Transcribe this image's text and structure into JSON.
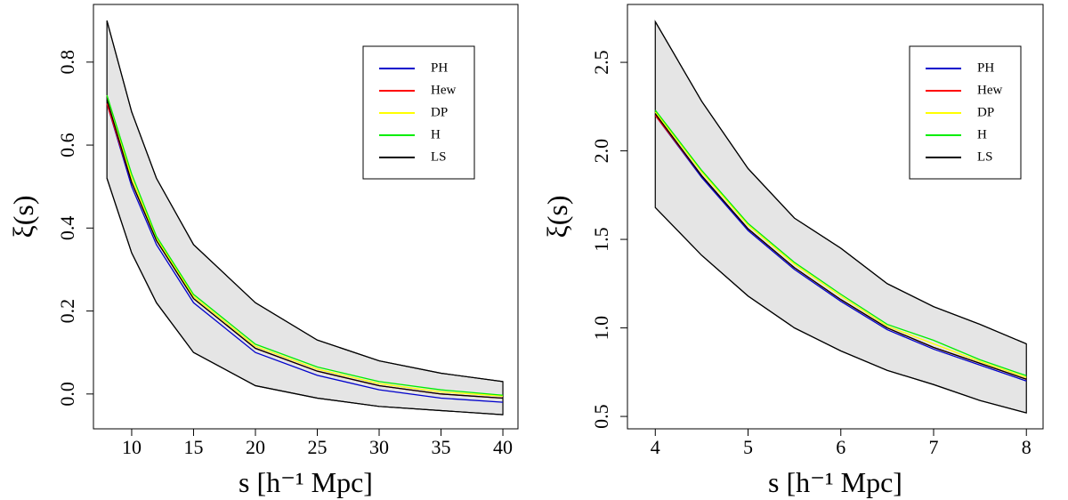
{
  "chart_data": [
    {
      "type": "line",
      "xlabel": "s [h⁻¹ Mpc]",
      "ylabel": "ξ(s)",
      "x": [
        8,
        10,
        12,
        15,
        20,
        25,
        30,
        35,
        40
      ],
      "xlim": [
        6.91,
        41.22
      ],
      "ylim": [
        -0.084,
        0.939
      ],
      "xticks": [
        10,
        15,
        20,
        25,
        30,
        35,
        40
      ],
      "yticks": [
        {
          "value": 0,
          "label": "0.0"
        },
        0.2,
        0.4,
        0.6,
        0.8
      ],
      "band": {
        "color": "#e5e5e5",
        "upper": [
          0.9,
          0.68,
          0.52,
          0.36,
          0.22,
          0.13,
          0.08,
          0.05,
          0.03
        ],
        "lower": [
          0.52,
          0.34,
          0.22,
          0.1,
          0.02,
          -0.01,
          -0.03,
          -0.04,
          -0.05
        ]
      },
      "series": [
        {
          "name": "PH",
          "color": "#0000cc",
          "values": [
            0.7,
            0.5,
            0.36,
            0.22,
            0.1,
            0.045,
            0.01,
            -0.01,
            -0.02
          ]
        },
        {
          "name": "Hew",
          "color": "#ff0000",
          "values": [
            0.7,
            0.51,
            0.37,
            0.23,
            0.11,
            0.055,
            0.02,
            0.0,
            -0.01
          ]
        },
        {
          "name": "DP",
          "color": "#ffff00",
          "values": [
            0.72,
            0.52,
            0.375,
            0.235,
            0.115,
            0.06,
            0.025,
            0.005,
            -0.005
          ]
        },
        {
          "name": "H",
          "color": "#00ee00",
          "values": [
            0.72,
            0.53,
            0.38,
            0.24,
            0.12,
            0.065,
            0.03,
            0.01,
            -0.003
          ]
        },
        {
          "name": "LS",
          "color": "#000000",
          "values": [
            0.71,
            0.51,
            0.37,
            0.23,
            0.11,
            0.055,
            0.02,
            0.0,
            -0.01
          ]
        }
      ]
    },
    {
      "type": "line",
      "xlabel": "s [h⁻¹ Mpc]",
      "ylabel": "ξ(s)",
      "x": [
        4,
        4.5,
        5,
        5.5,
        6,
        6.5,
        7,
        7.5,
        8
      ],
      "xlim": [
        3.7,
        8.18
      ],
      "ylim": [
        0.43,
        2.827
      ],
      "xticks": [
        4,
        5,
        6,
        7,
        8
      ],
      "yticks": [
        0.5,
        {
          "value": 1,
          "label": "1.0"
        },
        1.5,
        {
          "value": 2,
          "label": "2.0"
        },
        2.5
      ],
      "band": {
        "color": "#e5e5e5",
        "upper": [
          2.73,
          2.28,
          1.9,
          1.62,
          1.45,
          1.25,
          1.12,
          1.02,
          0.91
        ],
        "lower": [
          1.68,
          1.41,
          1.18,
          1.0,
          0.87,
          0.76,
          0.68,
          0.59,
          0.52
        ]
      },
      "series": [
        {
          "name": "PH",
          "color": "#0000cc",
          "values": [
            2.2,
            1.85,
            1.55,
            1.33,
            1.15,
            0.99,
            0.88,
            0.79,
            0.7
          ]
        },
        {
          "name": "Hew",
          "color": "#ff0000",
          "values": [
            2.2,
            1.86,
            1.56,
            1.34,
            1.16,
            1.0,
            0.89,
            0.8,
            0.71
          ]
        },
        {
          "name": "DP",
          "color": "#ffff00",
          "values": [
            2.22,
            1.88,
            1.58,
            1.36,
            1.18,
            1.01,
            0.91,
            0.81,
            0.72
          ]
        },
        {
          "name": "H",
          "color": "#00ee00",
          "values": [
            2.23,
            1.89,
            1.59,
            1.37,
            1.19,
            1.02,
            0.93,
            0.82,
            0.73
          ]
        },
        {
          "name": "LS",
          "color": "#000000",
          "values": [
            2.21,
            1.86,
            1.56,
            1.34,
            1.16,
            1.0,
            0.89,
            0.8,
            0.71
          ]
        }
      ]
    }
  ]
}
